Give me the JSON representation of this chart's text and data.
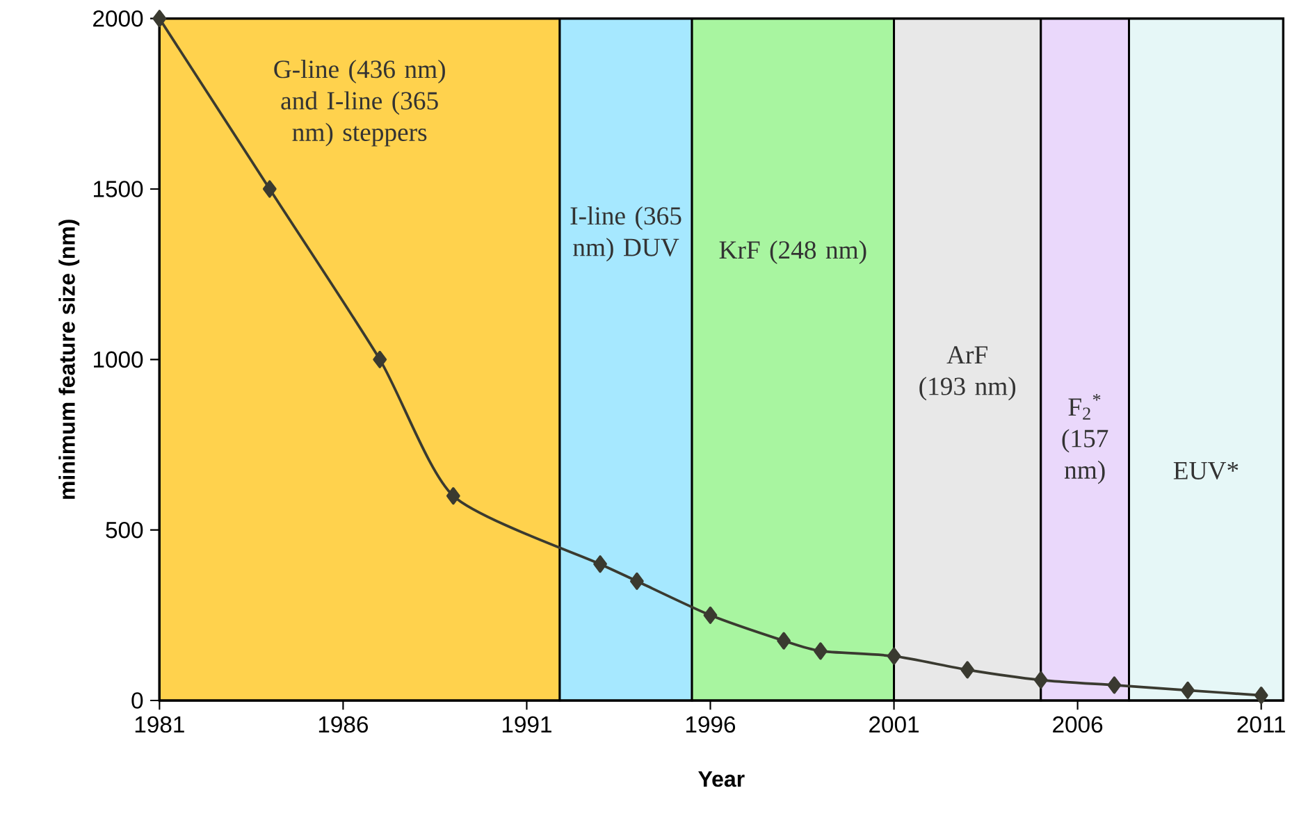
{
  "chart_data": {
    "type": "line",
    "xlabel": "Year",
    "ylabel": "minimum feature size (nm)",
    "xlim": [
      1981,
      2011.6
    ],
    "ylim": [
      0,
      2000
    ],
    "xticks": [
      1981,
      1986,
      1991,
      1996,
      2001,
      2006,
      2011
    ],
    "yticks": [
      0,
      500,
      1000,
      1500,
      2000
    ],
    "marker": "diamond",
    "line_style": "solid",
    "series": [
      {
        "color": "#3a3a30",
        "x": [
          1981,
          1984,
          1987,
          1989,
          1993,
          1994,
          1996,
          1998,
          1999,
          2001,
          2003,
          2005,
          2007,
          2009,
          2011
        ],
        "values": [
          2000,
          1500,
          1000,
          600,
          400,
          350,
          250,
          175,
          145,
          130,
          90,
          60,
          45,
          30,
          15
        ]
      }
    ],
    "bands": [
      {
        "axis": "x",
        "from": 1981,
        "to": 1991.9,
        "label": "G-line (436 nm) and I-line (365 nm) steppers",
        "color": "#ffd24d"
      },
      {
        "axis": "x",
        "from": 1991.9,
        "to": 1995.5,
        "label": "I-line (365 nm) DUV",
        "color": "#a6e8ff"
      },
      {
        "axis": "x",
        "from": 1995.5,
        "to": 2001,
        "label": "KrF (248 nm)",
        "color": "#a8f5a0"
      },
      {
        "axis": "x",
        "from": 2001,
        "to": 2005,
        "label": "ArF (193 nm)",
        "color": "#e8e8e8"
      },
      {
        "axis": "x",
        "from": 2005,
        "to": 2007.4,
        "label": "F$_{2}$$^{*}$ (157 nm)",
        "color": "#ead8fb"
      },
      {
        "axis": "x",
        "from": 2007.4,
        "to": 2011.6,
        "label": "EUV*",
        "color": "#e6f7f7"
      }
    ]
  }
}
